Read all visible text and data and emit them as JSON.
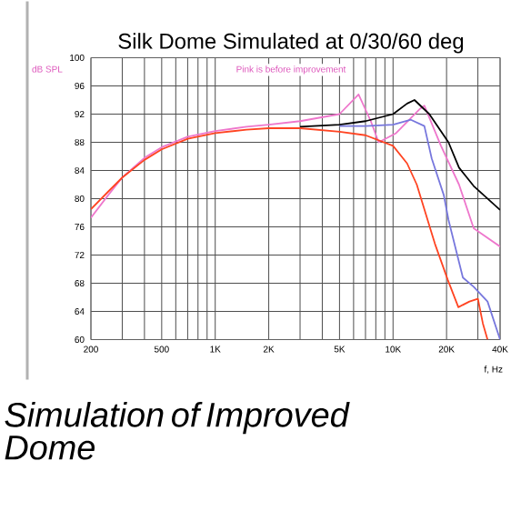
{
  "chart_data": {
    "type": "line",
    "title": "Silk Dome Simulated at 0/30/60 deg",
    "subtitle": "Pink is before improvement",
    "ylabel": "dB SPL",
    "xlabel": "f, Hz",
    "annotations": [
      "*Simulation of Improved Dome*"
    ],
    "log": "x",
    "grid": true,
    "marker": "none",
    "line_style": "solid",
    "xlim": [
      200,
      40000
    ],
    "ylim": [
      60,
      100
    ],
    "xticks": [
      200,
      {
        "value": 300,
        "label": null
      },
      {
        "value": 400,
        "label": null
      },
      500,
      {
        "value": 600,
        "label": null
      },
      {
        "value": 700,
        "label": null
      },
      {
        "value": 800,
        "label": null
      },
      {
        "value": 900,
        "label": null
      },
      {
        "value": 1000,
        "label": "1K"
      },
      {
        "value": 2000,
        "label": "2K"
      },
      {
        "value": 3000,
        "label": null
      },
      {
        "value": 4000,
        "label": null
      },
      {
        "value": 5000,
        "label": "5K"
      },
      {
        "value": 6000,
        "label": null
      },
      {
        "value": 7000,
        "label": null
      },
      {
        "value": 8000,
        "label": null
      },
      {
        "value": 9000,
        "label": null
      },
      {
        "value": 10000,
        "label": "10K"
      },
      {
        "value": 20000,
        "label": "20K"
      },
      {
        "value": 30000,
        "label": null
      },
      {
        "value": 40000,
        "label": "40K"
      }
    ],
    "yticks": [
      60,
      64,
      68,
      72,
      76,
      80,
      84,
      88,
      92,
      96,
      100
    ],
    "series": [
      {
        "color": "#ee77cc",
        "x": [
          200,
          250,
          300,
          400,
          500,
          700,
          1000,
          1500,
          2000,
          3000,
          5000,
          6400,
          7500,
          8300,
          10400,
          14100,
          15000,
          18600,
          23500,
          28400,
          40000
        ],
        "values": [
          77.3,
          80.5,
          83,
          85.8,
          87.3,
          88.8,
          89.6,
          90.2,
          90.5,
          91,
          92,
          94.8,
          91,
          88,
          89.3,
          92.7,
          93.2,
          87.5,
          82,
          75.8,
          73.2
        ]
      },
      {
        "color": "#000000",
        "x": [
          3000,
          5000,
          7000,
          10000,
          12000,
          13200,
          16000,
          20500,
          23500,
          28400,
          40000
        ],
        "values": [
          90.2,
          90.5,
          91,
          92,
          93.5,
          94,
          92,
          88,
          84.4,
          81.8,
          78.4
        ]
      },
      {
        "color": "#7777dd",
        "x": [
          5000,
          7000,
          10000,
          12600,
          15000,
          16500,
          19300,
          20500,
          24700,
          28400,
          34000,
          40000
        ],
        "values": [
          90.3,
          90.3,
          90.5,
          91.2,
          90.3,
          85.7,
          80.5,
          77,
          68.8,
          67.5,
          65.4,
          60
        ]
      },
      {
        "color": "#ff4422",
        "x": [
          200,
          250,
          300,
          400,
          500,
          700,
          1000,
          1500,
          2000,
          3000,
          5000,
          7000,
          10000,
          12000,
          13600,
          17200,
          20300,
          23300,
          26900,
          30000,
          32000,
          34000
        ],
        "values": [
          78.5,
          81,
          83,
          85.5,
          87,
          88.5,
          89.3,
          89.8,
          90,
          90,
          89.5,
          89,
          87.5,
          85,
          82,
          73.6,
          68.5,
          64.6,
          65.4,
          65.8,
          62.3,
          60
        ]
      }
    ]
  }
}
